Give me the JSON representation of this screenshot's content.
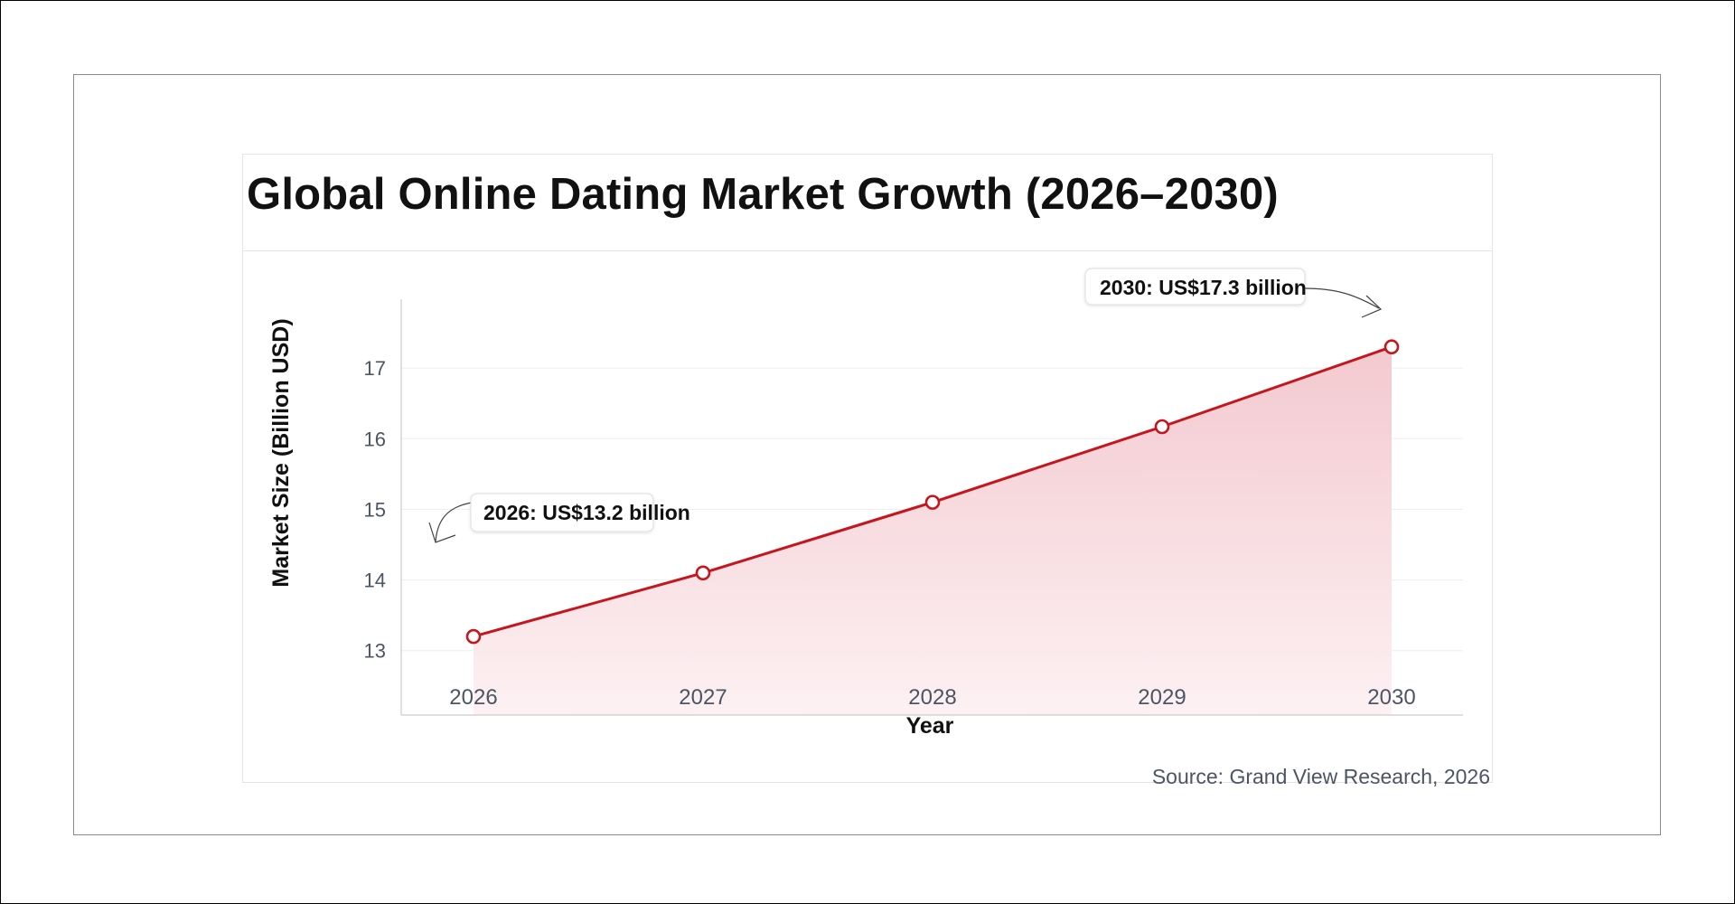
{
  "chart_data": {
    "type": "line",
    "title": "Global Online Dating Market Growth (2026–2030)",
    "xlabel": "Year",
    "ylabel": "Market Size (Billion USD)",
    "x": [
      "2026",
      "2027",
      "2028",
      "2029",
      "2030"
    ],
    "yticks": [
      "13",
      "14",
      "15",
      "16",
      "17"
    ],
    "ylim": [
      12.6,
      18.0
    ],
    "series": [
      {
        "values": [
          13.2,
          14.1,
          15.1,
          16.17,
          17.3
        ]
      }
    ],
    "fill": "area-gradient",
    "grid": "horizontal",
    "annotations": [
      {
        "text": "2026: US$13.2 billion",
        "point": 0
      },
      {
        "text": "2030: US$17.3 billion",
        "point": 4
      }
    ],
    "source": "Source: Grand View Research, 2026",
    "colors": {
      "line": "#c4161c",
      "marker_fill": "#ffffff",
      "area_top": "#f3c9cf",
      "area_bottom": "#fdf1f3",
      "grid": "#eeeeee",
      "axis": "#cccccc",
      "tick_label": "#4b5563"
    }
  }
}
